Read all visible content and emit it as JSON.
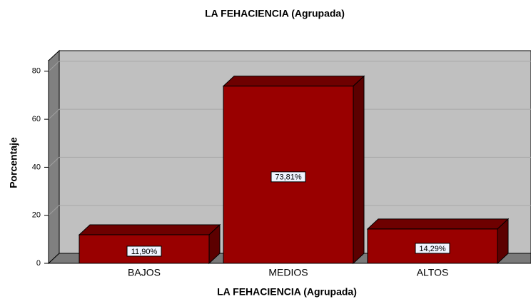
{
  "chart_data": {
    "type": "bar",
    "title": "LA FEHACIENCIA (Agrupada)",
    "x_label": "LA FEHACIENCIA (Agrupada)",
    "y_label": "Porcentaje",
    "categories": [
      "BAJOS",
      "MEDIOS",
      "ALTOS"
    ],
    "values": [
      11.9,
      73.81,
      14.29
    ],
    "value_labels": [
      "11,90%",
      "73,81%",
      "14,29%"
    ],
    "color": "#990000",
    "ylim": [
      0,
      85
    ],
    "yticks": [
      0,
      20,
      40,
      60,
      80
    ],
    "grid": true
  }
}
